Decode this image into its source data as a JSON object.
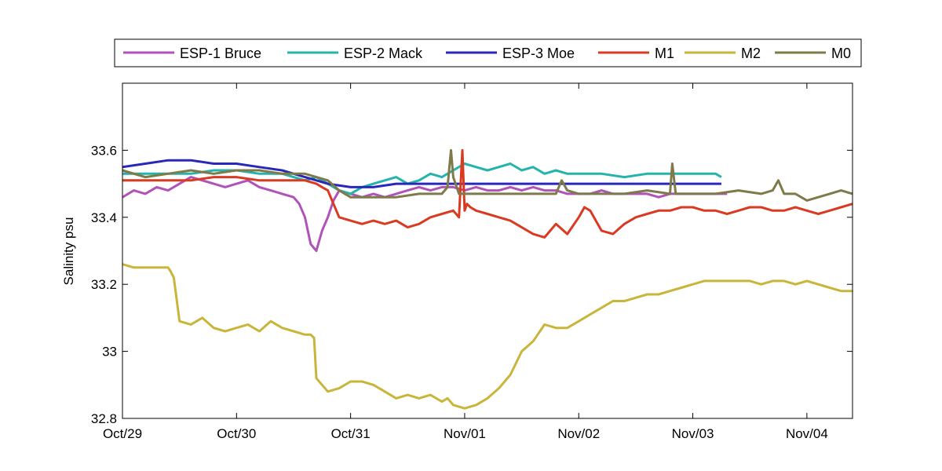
{
  "chart_data": {
    "type": "line",
    "title": "",
    "xlabel": "",
    "ylabel": "Salinity psu",
    "x_tick_labels": [
      "Oct/29",
      "Oct/30",
      "Oct/31",
      "Nov/01",
      "Nov/02",
      "Nov/03",
      "Nov/04"
    ],
    "y_tick_labels": [
      "32.8",
      "33",
      "33.2",
      "33.4",
      "33.6"
    ],
    "y_ticks": [
      32.8,
      33.0,
      33.2,
      33.4,
      33.6
    ],
    "xlim": [
      0,
      6.4
    ],
    "ylim": [
      32.8,
      33.8
    ],
    "x_units": "days since Oct/29",
    "grid": false,
    "legend_position": "top, outside plot (horizontal)",
    "series": [
      {
        "name": "ESP-1 Bruce",
        "color": "#b152b9",
        "x": [
          0,
          0.1,
          0.2,
          0.3,
          0.4,
          0.5,
          0.6,
          0.7,
          0.8,
          0.9,
          1.0,
          1.1,
          1.2,
          1.3,
          1.4,
          1.5,
          1.55,
          1.6,
          1.65,
          1.7,
          1.75,
          1.8,
          1.85,
          1.9,
          2.0,
          2.1,
          2.2,
          2.3,
          2.4,
          2.5,
          2.6,
          2.7,
          2.8,
          2.9,
          3.0,
          3.1,
          3.2,
          3.3,
          3.4,
          3.5,
          3.6,
          3.7,
          3.8,
          3.9,
          4.0,
          4.1,
          4.2,
          4.3,
          4.4,
          4.5,
          4.6,
          4.7,
          4.8,
          4.9,
          5.0,
          5.1,
          5.2,
          5.3
        ],
        "y": [
          33.46,
          33.48,
          33.47,
          33.49,
          33.48,
          33.5,
          33.52,
          33.51,
          33.5,
          33.49,
          33.5,
          33.51,
          33.49,
          33.48,
          33.47,
          33.46,
          33.44,
          33.4,
          33.32,
          33.3,
          33.36,
          33.4,
          33.45,
          33.48,
          33.47,
          33.46,
          33.47,
          33.46,
          33.47,
          33.48,
          33.49,
          33.48,
          33.49,
          33.49,
          33.48,
          33.49,
          33.48,
          33.48,
          33.49,
          33.48,
          33.49,
          33.48,
          33.48,
          33.47,
          33.47,
          33.47,
          33.48,
          33.47,
          33.47,
          33.47,
          33.47,
          33.46,
          33.47,
          33.47,
          33.47,
          33.47,
          33.47,
          33.47
        ]
      },
      {
        "name": "ESP-2 Mack",
        "color": "#24b4ad",
        "x": [
          0,
          0.2,
          0.4,
          0.6,
          0.8,
          1.0,
          1.2,
          1.4,
          1.5,
          1.6,
          1.7,
          1.8,
          1.9,
          2.0,
          2.1,
          2.2,
          2.3,
          2.4,
          2.5,
          2.6,
          2.7,
          2.8,
          2.9,
          3.0,
          3.1,
          3.2,
          3.3,
          3.4,
          3.5,
          3.6,
          3.7,
          3.8,
          3.9,
          4.0,
          4.2,
          4.4,
          4.6,
          4.8,
          5.0,
          5.2,
          5.25
        ],
        "y": [
          33.53,
          33.53,
          33.53,
          33.53,
          33.54,
          33.54,
          33.53,
          33.53,
          33.52,
          33.51,
          33.52,
          33.5,
          33.48,
          33.47,
          33.49,
          33.5,
          33.51,
          33.52,
          33.5,
          33.51,
          33.53,
          33.52,
          33.54,
          33.56,
          33.55,
          33.54,
          33.55,
          33.56,
          33.54,
          33.55,
          33.53,
          33.54,
          33.53,
          33.53,
          33.53,
          33.52,
          33.53,
          33.53,
          33.53,
          33.53,
          33.52
        ]
      },
      {
        "name": "ESP-3 Moe",
        "color": "#2a28b8",
        "x": [
          0,
          0.2,
          0.4,
          0.6,
          0.8,
          1.0,
          1.2,
          1.4,
          1.6,
          1.7,
          1.8,
          2.0,
          2.2,
          2.4,
          2.6,
          2.8,
          3.0,
          3.2,
          3.4,
          3.6,
          3.8,
          4.0,
          4.2,
          4.4,
          4.6,
          4.8,
          5.0,
          5.2,
          5.25
        ],
        "y": [
          33.55,
          33.56,
          33.57,
          33.57,
          33.56,
          33.56,
          33.55,
          33.54,
          33.52,
          33.51,
          33.5,
          33.49,
          33.49,
          33.5,
          33.5,
          33.5,
          33.5,
          33.5,
          33.5,
          33.5,
          33.5,
          33.5,
          33.5,
          33.5,
          33.5,
          33.5,
          33.5,
          33.5,
          33.5
        ]
      },
      {
        "name": "M1",
        "color": "#d93a22",
        "x": [
          0,
          0.2,
          0.4,
          0.6,
          0.8,
          1.0,
          1.2,
          1.4,
          1.6,
          1.7,
          1.75,
          1.8,
          1.85,
          1.9,
          2.0,
          2.1,
          2.2,
          2.3,
          2.4,
          2.5,
          2.6,
          2.7,
          2.8,
          2.9,
          2.95,
          2.98,
          3.0,
          3.02,
          3.05,
          3.1,
          3.2,
          3.3,
          3.4,
          3.5,
          3.6,
          3.7,
          3.8,
          3.9,
          4.0,
          4.05,
          4.1,
          4.2,
          4.3,
          4.4,
          4.5,
          4.6,
          4.7,
          4.8,
          4.9,
          5.0,
          5.1,
          5.2,
          5.3,
          5.4,
          5.5,
          5.6,
          5.7,
          5.8,
          5.9,
          6.0,
          6.1,
          6.2,
          6.3,
          6.4
        ],
        "y": [
          33.51,
          33.51,
          33.51,
          33.51,
          33.52,
          33.52,
          33.51,
          33.51,
          33.51,
          33.5,
          33.49,
          33.48,
          33.44,
          33.4,
          33.39,
          33.38,
          33.39,
          33.38,
          33.39,
          33.37,
          33.38,
          33.4,
          33.41,
          33.42,
          33.4,
          33.6,
          33.42,
          33.44,
          33.43,
          33.42,
          33.41,
          33.4,
          33.39,
          33.37,
          33.35,
          33.34,
          33.38,
          33.35,
          33.4,
          33.43,
          33.42,
          33.36,
          33.35,
          33.38,
          33.4,
          33.41,
          33.42,
          33.42,
          33.43,
          33.43,
          33.42,
          33.42,
          33.41,
          33.42,
          33.43,
          33.43,
          33.42,
          33.42,
          33.43,
          33.42,
          33.41,
          33.42,
          33.43,
          33.44
        ]
      },
      {
        "name": "M2",
        "color": "#c9b53a",
        "x": [
          0,
          0.1,
          0.2,
          0.3,
          0.4,
          0.42,
          0.45,
          0.5,
          0.6,
          0.7,
          0.8,
          0.9,
          1.0,
          1.1,
          1.2,
          1.3,
          1.4,
          1.5,
          1.6,
          1.65,
          1.68,
          1.7,
          1.75,
          1.8,
          1.9,
          2.0,
          2.1,
          2.2,
          2.3,
          2.4,
          2.5,
          2.6,
          2.7,
          2.8,
          2.85,
          2.9,
          3.0,
          3.1,
          3.2,
          3.3,
          3.4,
          3.5,
          3.6,
          3.7,
          3.8,
          3.9,
          4.0,
          4.1,
          4.2,
          4.3,
          4.4,
          4.5,
          4.6,
          4.7,
          4.8,
          4.9,
          5.0,
          5.1,
          5.2,
          5.3,
          5.4,
          5.5,
          5.6,
          5.7,
          5.8,
          5.9,
          6.0,
          6.1,
          6.2,
          6.3,
          6.4
        ],
        "y": [
          33.26,
          33.25,
          33.25,
          33.25,
          33.25,
          33.24,
          33.22,
          33.09,
          33.08,
          33.1,
          33.07,
          33.06,
          33.07,
          33.08,
          33.06,
          33.09,
          33.07,
          33.06,
          33.05,
          33.05,
          33.04,
          32.92,
          32.9,
          32.88,
          32.89,
          32.91,
          32.91,
          32.9,
          32.88,
          32.86,
          32.87,
          32.86,
          32.87,
          32.85,
          32.86,
          32.84,
          32.83,
          32.84,
          32.86,
          32.89,
          32.93,
          33.0,
          33.03,
          33.08,
          33.07,
          33.07,
          33.09,
          33.11,
          33.13,
          33.15,
          33.15,
          33.16,
          33.17,
          33.17,
          33.18,
          33.19,
          33.2,
          33.21,
          33.21,
          33.21,
          33.21,
          33.21,
          33.2,
          33.21,
          33.21,
          33.2,
          33.21,
          33.2,
          33.19,
          33.18,
          33.18
        ]
      },
      {
        "name": "M0",
        "color": "#7e7a4a",
        "x": [
          0,
          0.2,
          0.4,
          0.6,
          0.8,
          1.0,
          1.2,
          1.4,
          1.6,
          1.7,
          1.8,
          1.9,
          2.0,
          2.2,
          2.4,
          2.6,
          2.8,
          2.85,
          2.88,
          2.9,
          2.95,
          3.0,
          3.1,
          3.2,
          3.4,
          3.6,
          3.8,
          3.85,
          3.9,
          4.0,
          4.2,
          4.4,
          4.6,
          4.8,
          4.8,
          4.82,
          4.85,
          5.0,
          5.2,
          5.4,
          5.6,
          5.7,
          5.75,
          5.8,
          5.9,
          6.0,
          6.1,
          6.2,
          6.3,
          6.4
        ],
        "y": [
          33.54,
          33.52,
          33.53,
          33.54,
          33.53,
          33.54,
          33.54,
          33.53,
          33.53,
          33.52,
          33.51,
          33.48,
          33.46,
          33.46,
          33.46,
          33.47,
          33.47,
          33.49,
          33.6,
          33.52,
          33.47,
          33.47,
          33.47,
          33.47,
          33.47,
          33.47,
          33.47,
          33.51,
          33.48,
          33.47,
          33.47,
          33.47,
          33.48,
          33.47,
          33.47,
          33.56,
          33.47,
          33.47,
          33.47,
          33.48,
          33.47,
          33.48,
          33.51,
          33.47,
          33.47,
          33.45,
          33.46,
          33.47,
          33.48,
          33.47
        ]
      }
    ]
  }
}
